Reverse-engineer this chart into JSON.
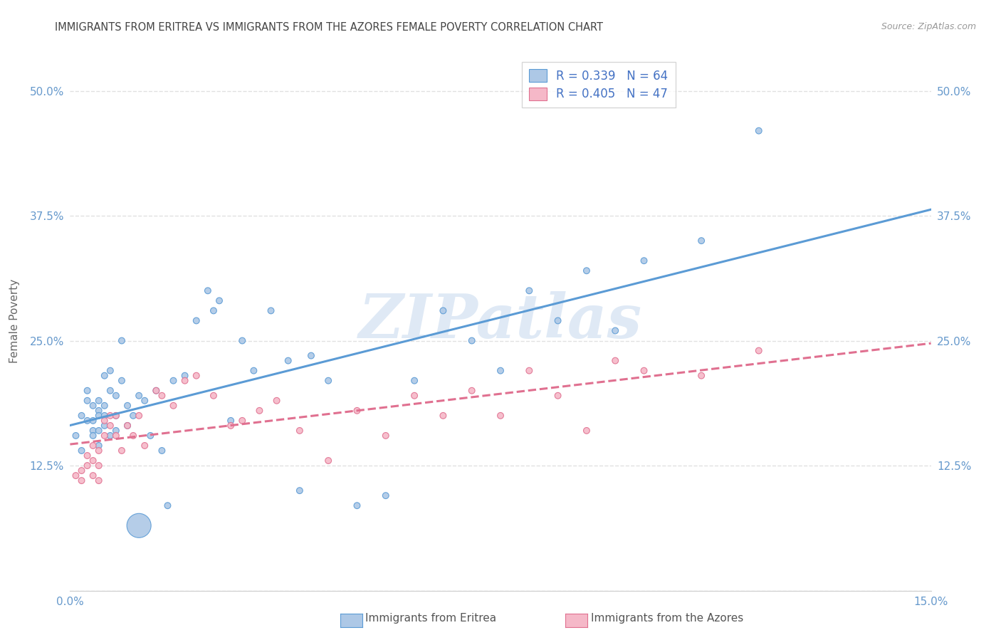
{
  "title": "IMMIGRANTS FROM ERITREA VS IMMIGRANTS FROM THE AZORES FEMALE POVERTY CORRELATION CHART",
  "source": "Source: ZipAtlas.com",
  "ylabel": "Female Poverty",
  "xlim": [
    0.0,
    0.15
  ],
  "ylim": [
    0.0,
    0.54
  ],
  "yticks": [
    0.0,
    0.125,
    0.25,
    0.375,
    0.5
  ],
  "ytick_labels": [
    "",
    "12.5%",
    "25.0%",
    "37.5%",
    "50.0%"
  ],
  "xticks": [
    0.0,
    0.05,
    0.1,
    0.15
  ],
  "xtick_labels": [
    "0.0%",
    "",
    "",
    "15.0%"
  ],
  "legend_r1": "R = 0.339   N = 64",
  "legend_r2": "R = 0.405   N = 47",
  "label_eritrea": "Immigrants from Eritrea",
  "label_azores": "Immigrants from the Azores",
  "color_eritrea": "#adc8e6",
  "color_azores": "#f5b8c8",
  "line_color_eritrea": "#5b9bd5",
  "line_color_azores": "#e07090",
  "watermark": "ZIPatlas",
  "background_color": "#ffffff",
  "grid_color": "#dddddd",
  "title_color": "#444444",
  "axis_label_color": "#6699cc",
  "eritrea_x": [
    0.001,
    0.002,
    0.002,
    0.003,
    0.003,
    0.003,
    0.004,
    0.004,
    0.004,
    0.004,
    0.005,
    0.005,
    0.005,
    0.005,
    0.005,
    0.006,
    0.006,
    0.006,
    0.006,
    0.007,
    0.007,
    0.007,
    0.008,
    0.008,
    0.008,
    0.009,
    0.009,
    0.01,
    0.01,
    0.011,
    0.012,
    0.012,
    0.013,
    0.014,
    0.015,
    0.016,
    0.017,
    0.018,
    0.02,
    0.022,
    0.024,
    0.025,
    0.026,
    0.028,
    0.03,
    0.032,
    0.035,
    0.038,
    0.04,
    0.042,
    0.045,
    0.05,
    0.055,
    0.06,
    0.065,
    0.07,
    0.075,
    0.08,
    0.085,
    0.09,
    0.095,
    0.1,
    0.11,
    0.12
  ],
  "eritrea_y": [
    0.155,
    0.175,
    0.14,
    0.2,
    0.17,
    0.19,
    0.185,
    0.16,
    0.17,
    0.155,
    0.18,
    0.19,
    0.175,
    0.16,
    0.145,
    0.215,
    0.185,
    0.175,
    0.165,
    0.22,
    0.2,
    0.155,
    0.195,
    0.175,
    0.16,
    0.25,
    0.21,
    0.185,
    0.165,
    0.175,
    0.195,
    0.065,
    0.19,
    0.155,
    0.2,
    0.14,
    0.085,
    0.21,
    0.215,
    0.27,
    0.3,
    0.28,
    0.29,
    0.17,
    0.25,
    0.22,
    0.28,
    0.23,
    0.1,
    0.235,
    0.21,
    0.085,
    0.095,
    0.21,
    0.28,
    0.25,
    0.22,
    0.3,
    0.27,
    0.32,
    0.26,
    0.33,
    0.35,
    0.46
  ],
  "eritrea_size": [
    40,
    40,
    40,
    40,
    40,
    40,
    40,
    40,
    40,
    40,
    40,
    40,
    40,
    40,
    40,
    40,
    40,
    40,
    40,
    40,
    40,
    40,
    40,
    40,
    40,
    40,
    40,
    40,
    40,
    40,
    40,
    600,
    40,
    40,
    40,
    40,
    40,
    40,
    40,
    40,
    40,
    40,
    40,
    40,
    40,
    40,
    40,
    40,
    40,
    40,
    40,
    40,
    40,
    40,
    40,
    40,
    40,
    40,
    40,
    40,
    40,
    40,
    40,
    40
  ],
  "azores_x": [
    0.001,
    0.002,
    0.002,
    0.003,
    0.003,
    0.004,
    0.004,
    0.004,
    0.005,
    0.005,
    0.005,
    0.006,
    0.006,
    0.007,
    0.007,
    0.008,
    0.008,
    0.009,
    0.01,
    0.011,
    0.012,
    0.013,
    0.015,
    0.016,
    0.018,
    0.02,
    0.022,
    0.025,
    0.028,
    0.03,
    0.033,
    0.036,
    0.04,
    0.045,
    0.05,
    0.055,
    0.06,
    0.065,
    0.07,
    0.075,
    0.08,
    0.085,
    0.09,
    0.095,
    0.1,
    0.11,
    0.12
  ],
  "azores_y": [
    0.115,
    0.12,
    0.11,
    0.135,
    0.125,
    0.145,
    0.13,
    0.115,
    0.14,
    0.125,
    0.11,
    0.17,
    0.155,
    0.175,
    0.165,
    0.175,
    0.155,
    0.14,
    0.165,
    0.155,
    0.175,
    0.145,
    0.2,
    0.195,
    0.185,
    0.21,
    0.215,
    0.195,
    0.165,
    0.17,
    0.18,
    0.19,
    0.16,
    0.13,
    0.18,
    0.155,
    0.195,
    0.175,
    0.2,
    0.175,
    0.22,
    0.195,
    0.16,
    0.23,
    0.22,
    0.215,
    0.24
  ],
  "azores_size": [
    40,
    40,
    40,
    40,
    40,
    40,
    40,
    40,
    40,
    40,
    40,
    40,
    40,
    40,
    40,
    40,
    40,
    40,
    40,
    40,
    40,
    40,
    40,
    40,
    40,
    40,
    40,
    40,
    40,
    40,
    40,
    40,
    40,
    40,
    40,
    40,
    40,
    40,
    40,
    40,
    40,
    40,
    40,
    40,
    40,
    40,
    40
  ]
}
